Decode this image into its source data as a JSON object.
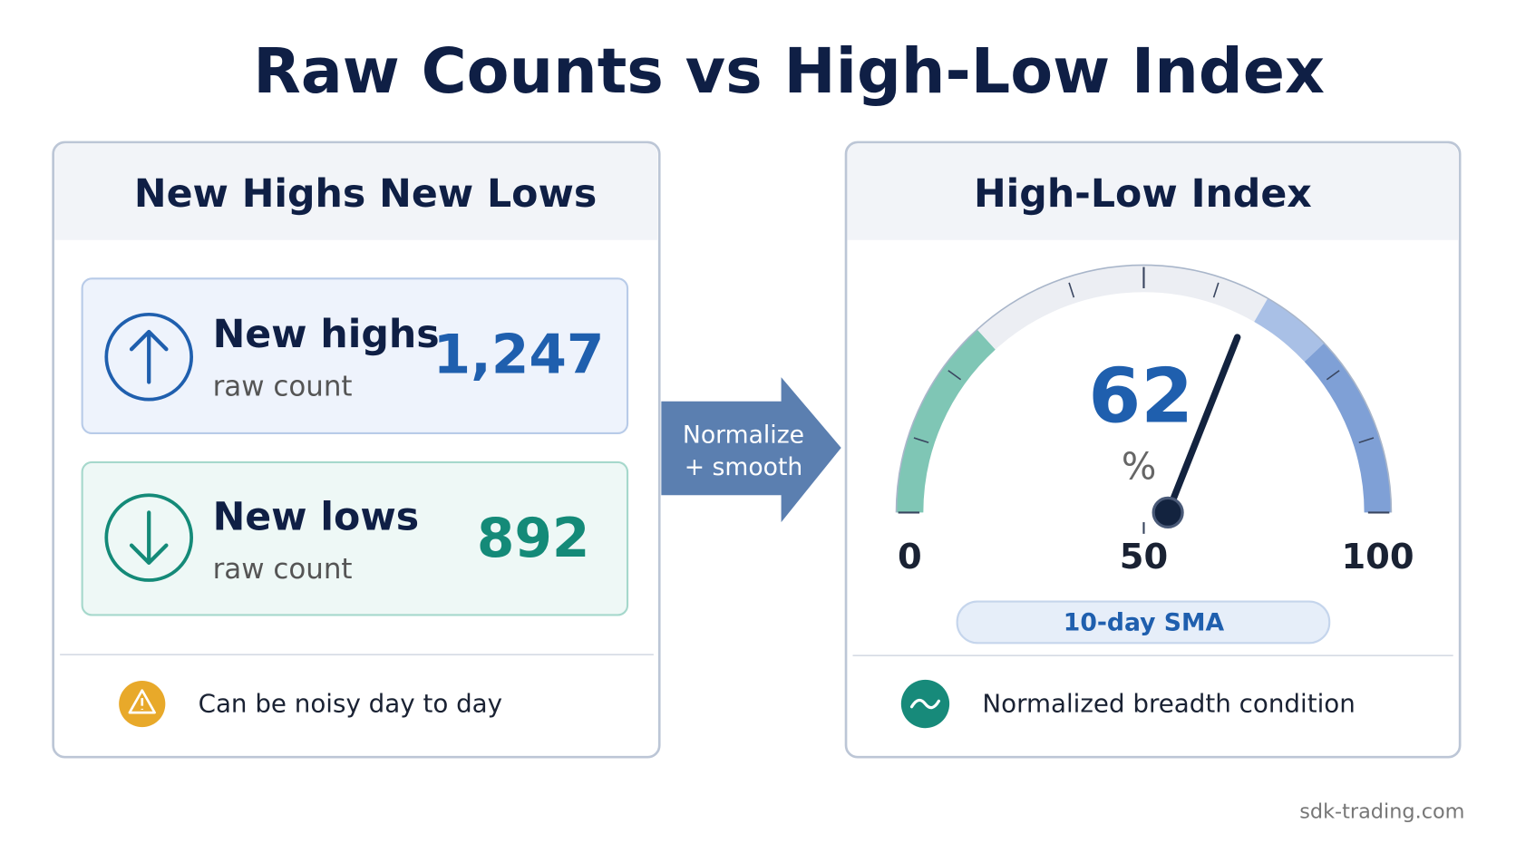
{
  "title": "Raw Counts vs High-Low Index",
  "left_panel": {
    "title": "New Highs New Lows",
    "cards": [
      {
        "label": "New highs",
        "sublabel": "raw count",
        "value": "1,247"
      },
      {
        "label": "New lows",
        "sublabel": "raw count",
        "value": "892"
      }
    ],
    "note": "Can be noisy day to day"
  },
  "arrow": {
    "lines": [
      "Normalize",
      "+ smooth"
    ]
  },
  "right_panel": {
    "title": "High-Low Index",
    "gauge": {
      "value": 62,
      "unit": "%",
      "range": [
        0,
        100
      ],
      "ticks": [
        0,
        50,
        100
      ]
    },
    "badge": "10-day SMA",
    "note": "Normalized breadth condition"
  },
  "footer": "sdk-trading.com"
}
